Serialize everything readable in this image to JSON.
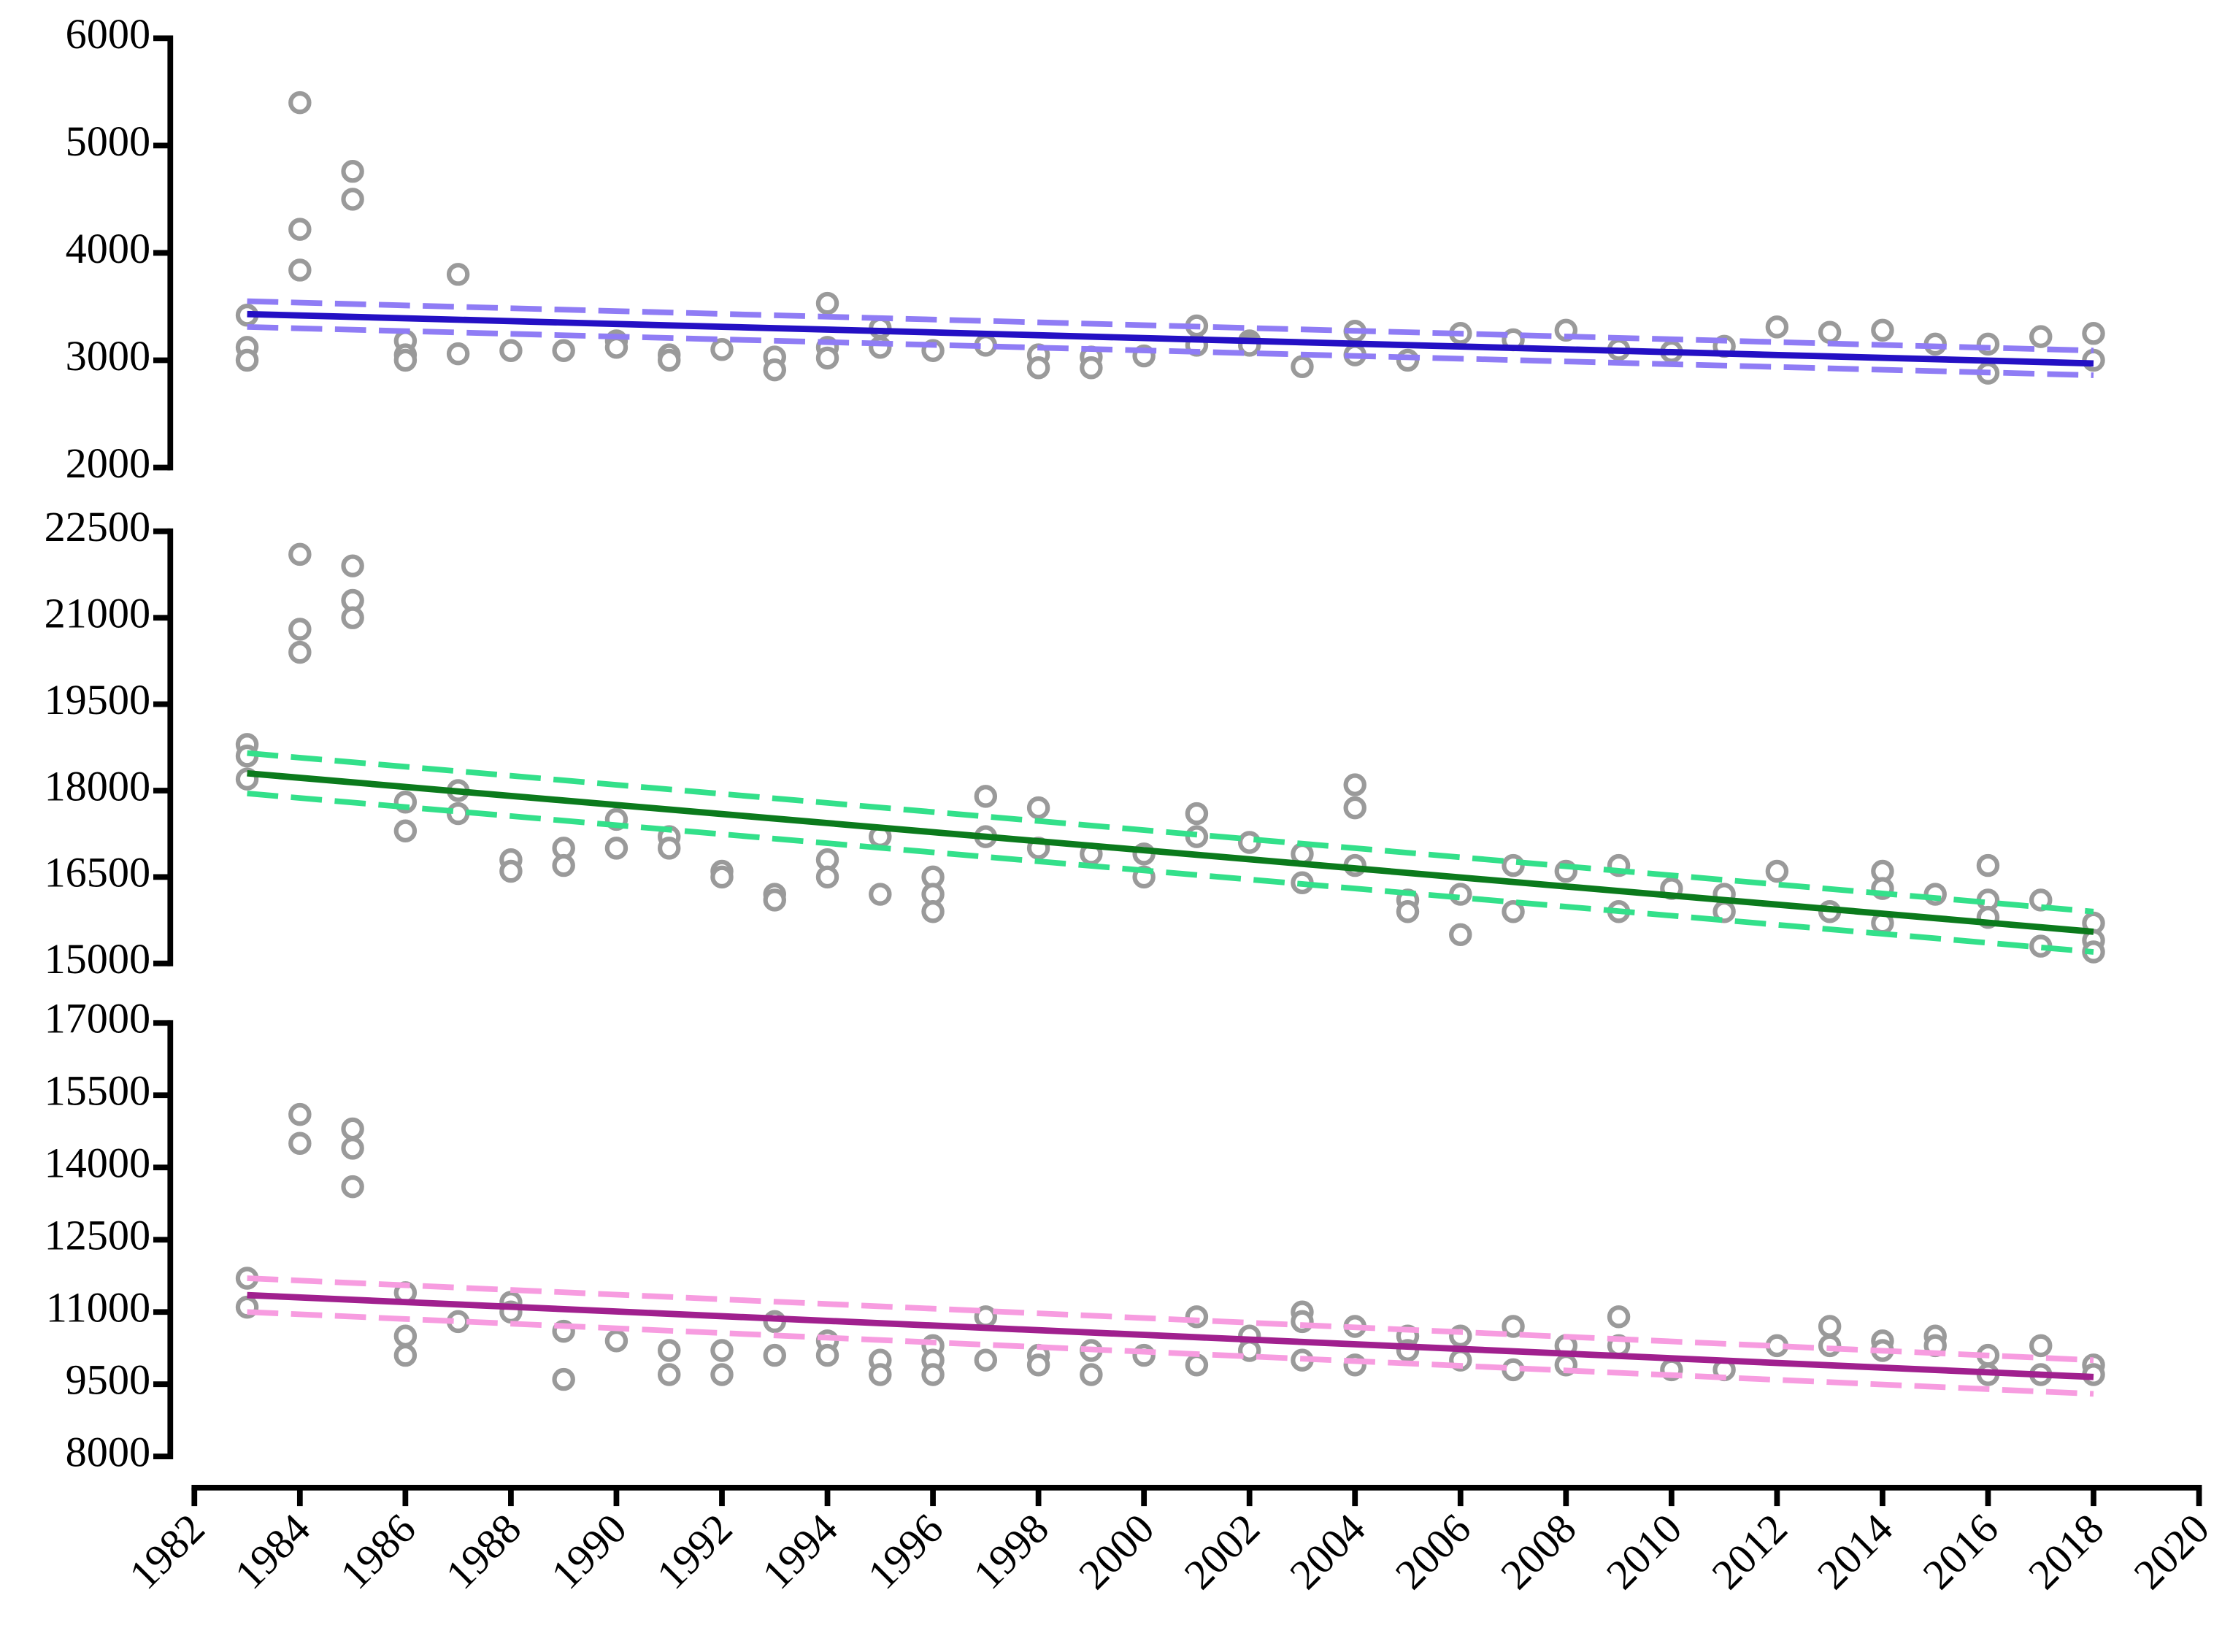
{
  "chart_data": [
    {
      "type": "scatter",
      "ylim": [
        2000,
        6000
      ],
      "yticks": [
        2000,
        3000,
        4000,
        5000,
        6000
      ],
      "xlim": [
        1982,
        2020
      ],
      "points": {
        "color": "#9a9a9a",
        "x": [
          1983,
          1983,
          1983,
          1984,
          1984,
          1984,
          1985,
          1985,
          1986,
          1986,
          1986,
          1987,
          1987,
          1988,
          1989,
          1990,
          1990,
          1991,
          1991,
          1992,
          1993,
          1993,
          1994,
          1994,
          1994,
          1995,
          1995,
          1996,
          1997,
          1998,
          1998,
          1999,
          1999,
          2000,
          2001,
          2001,
          2002,
          2002,
          2003,
          2004,
          2004,
          2005,
          2006,
          2007,
          2008,
          2009,
          2010,
          2011,
          2012,
          2013,
          2014,
          2015,
          2016,
          2016,
          2017,
          2018,
          2018
        ],
        "values": [
          3420,
          3120,
          3000,
          5400,
          4220,
          3840,
          4760,
          4500,
          3180,
          3050,
          3000,
          3800,
          3060,
          3090,
          3090,
          3180,
          3120,
          3050,
          3000,
          3100,
          3030,
          2910,
          3530,
          3120,
          3020,
          3300,
          3120,
          3090,
          3140,
          3050,
          2930,
          3030,
          2930,
          3040,
          3320,
          3140,
          3180,
          3140,
          2940,
          3270,
          3050,
          3000,
          3250,
          3190,
          3280,
          3100,
          3080,
          3130,
          3310,
          3260,
          3280,
          3150,
          3150,
          2880,
          3220,
          3250,
          3000
        ]
      },
      "fit_line": {
        "color": "#2410c4",
        "x": [
          1983,
          2018
        ],
        "values": [
          3430,
          2970
        ]
      },
      "ci_upper": {
        "color": "#8f7cf5",
        "x": [
          1983,
          2018
        ],
        "values": [
          3550,
          3090
        ]
      },
      "ci_lower": {
        "color": "#8f7cf5",
        "x": [
          1983,
          2018
        ],
        "values": [
          3310,
          2860
        ]
      }
    },
    {
      "type": "scatter",
      "ylim": [
        15000,
        22500
      ],
      "yticks": [
        15000,
        16500,
        18000,
        19500,
        21000,
        22500
      ],
      "xlim": [
        1982,
        2020
      ],
      "points": {
        "color": "#9a9a9a",
        "x": [
          1983,
          1983,
          1983,
          1984,
          1984,
          1984,
          1985,
          1985,
          1985,
          1986,
          1986,
          1987,
          1987,
          1988,
          1988,
          1989,
          1989,
          1990,
          1990,
          1991,
          1991,
          1992,
          1992,
          1993,
          1993,
          1994,
          1994,
          1995,
          1995,
          1996,
          1996,
          1996,
          1997,
          1997,
          1998,
          1998,
          1999,
          2000,
          2000,
          2001,
          2001,
          2002,
          2003,
          2003,
          2004,
          2004,
          2004,
          2005,
          2005,
          2006,
          2006,
          2007,
          2007,
          2008,
          2009,
          2009,
          2010,
          2011,
          2011,
          2012,
          2013,
          2014,
          2014,
          2014,
          2015,
          2016,
          2016,
          2016,
          2017,
          2017,
          2018,
          2018,
          2018
        ],
        "values": [
          18800,
          18600,
          18200,
          22100,
          20800,
          20400,
          21900,
          21300,
          21000,
          17800,
          17300,
          18000,
          17600,
          16800,
          16600,
          17000,
          16700,
          17500,
          17000,
          17200,
          17000,
          16600,
          16500,
          16200,
          16100,
          16800,
          16500,
          17200,
          16200,
          16500,
          16200,
          15900,
          17900,
          17200,
          17700,
          17000,
          16900,
          16900,
          16500,
          17600,
          17200,
          17100,
          16900,
          16400,
          18100,
          17700,
          16700,
          16100,
          15900,
          16200,
          15500,
          16700,
          15900,
          16600,
          16700,
          15900,
          16300,
          16200,
          15900,
          16600,
          15900,
          16600,
          16300,
          15700,
          16200,
          16700,
          16100,
          15800,
          16100,
          15300,
          15700,
          15400,
          15200
        ]
      },
      "fit_line": {
        "color": "#0b7a1c",
        "x": [
          1983,
          2018
        ],
        "values": [
          18300,
          15550
        ]
      },
      "ci_upper": {
        "color": "#33e08a",
        "x": [
          1983,
          2018
        ],
        "values": [
          18650,
          15900
        ]
      },
      "ci_lower": {
        "color": "#33e08a",
        "x": [
          1983,
          2018
        ],
        "values": [
          17950,
          15200
        ]
      }
    },
    {
      "type": "scatter",
      "ylim": [
        8000,
        17000
      ],
      "yticks": [
        8000,
        9500,
        11000,
        12500,
        14000,
        15500,
        17000
      ],
      "xlim": [
        1982,
        2020
      ],
      "xticks": [
        1982,
        1984,
        1986,
        1988,
        1990,
        1992,
        1994,
        1996,
        1998,
        2000,
        2002,
        2004,
        2006,
        2008,
        2010,
        2012,
        2014,
        2016,
        2018,
        2020
      ],
      "points": {
        "color": "#9a9a9a",
        "x": [
          1983,
          1983,
          1984,
          1984,
          1985,
          1985,
          1985,
          1986,
          1986,
          1986,
          1987,
          1988,
          1988,
          1989,
          1989,
          1990,
          1991,
          1991,
          1992,
          1992,
          1993,
          1993,
          1994,
          1994,
          1995,
          1995,
          1996,
          1996,
          1996,
          1997,
          1997,
          1998,
          1998,
          1999,
          1999,
          2000,
          2001,
          2001,
          2002,
          2002,
          2003,
          2003,
          2003,
          2004,
          2004,
          2005,
          2005,
          2006,
          2006,
          2007,
          2007,
          2008,
          2008,
          2009,
          2009,
          2010,
          2011,
          2012,
          2013,
          2013,
          2014,
          2014,
          2015,
          2015,
          2016,
          2016,
          2017,
          2017,
          2018,
          2018
        ],
        "values": [
          11700,
          11100,
          15100,
          14500,
          14800,
          14400,
          13600,
          11400,
          10500,
          10100,
          10800,
          11200,
          11000,
          10600,
          9600,
          10400,
          10200,
          9700,
          10200,
          9700,
          10800,
          10100,
          10400,
          10100,
          10000,
          9700,
          10300,
          10000,
          9700,
          10900,
          10000,
          10100,
          9900,
          10200,
          9700,
          10100,
          10900,
          9900,
          10500,
          10200,
          11000,
          10800,
          10000,
          10700,
          9900,
          10500,
          10200,
          10500,
          10000,
          10700,
          9800,
          10300,
          9900,
          10900,
          10300,
          9800,
          9800,
          10300,
          10700,
          10300,
          10400,
          10200,
          10500,
          10300,
          10100,
          9700,
          10300,
          9700,
          9900,
          9700
        ]
      },
      "fit_line": {
        "color": "#a0208e",
        "x": [
          1983,
          2018
        ],
        "values": [
          11350,
          9650
        ]
      },
      "ci_upper": {
        "color": "#f79ce0",
        "x": [
          1983,
          2018
        ],
        "values": [
          11700,
          10000
        ]
      },
      "ci_lower": {
        "color": "#f79ce0",
        "x": [
          1983,
          2018
        ],
        "values": [
          11000,
          9300
        ]
      }
    }
  ]
}
